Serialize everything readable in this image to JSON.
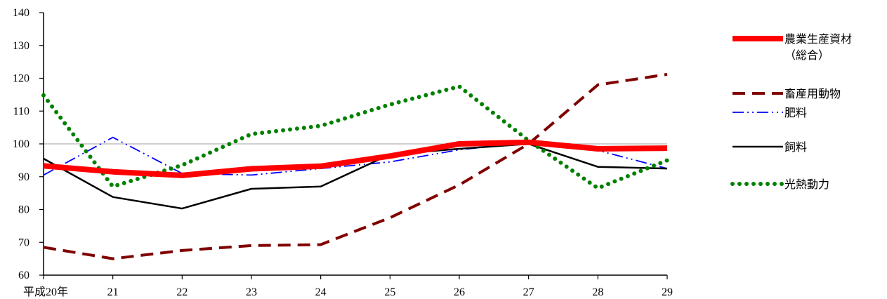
{
  "chart_data": {
    "type": "line",
    "title": "",
    "xlabel": "",
    "ylabel": "",
    "categories": [
      "平成20年",
      "21",
      "22",
      "23",
      "24",
      "25",
      "26",
      "27",
      "28",
      "29"
    ],
    "ylim": [
      60,
      140
    ],
    "yticks": [
      60,
      70,
      80,
      90,
      100,
      110,
      120,
      130,
      140
    ],
    "reference_line": 100,
    "legend_position": "right",
    "series": [
      {
        "name": "農業生産資材\n（総合）",
        "style": "thick-solid",
        "color": "#ff0000",
        "values": [
          93.3,
          91.5,
          90.4,
          92.4,
          93.2,
          96.3,
          100.0,
          100.5,
          98.5,
          98.7
        ]
      },
      {
        "name": "畜産用動物",
        "style": "dashed",
        "color": "#7f0000",
        "values": [
          68.5,
          65.0,
          67.5,
          69.0,
          69.3,
          77.5,
          87.5,
          100.0,
          118.0,
          121.2
        ]
      },
      {
        "name": "肥料",
        "style": "dash-dot-dot",
        "color": "#0000ff",
        "values": [
          90.5,
          102.0,
          91.0,
          90.5,
          92.5,
          94.5,
          98.2,
          100.5,
          98.0,
          92.5
        ]
      },
      {
        "name": "飼料",
        "style": "solid",
        "color": "#000000",
        "values": [
          95.5,
          83.8,
          80.3,
          86.3,
          87.0,
          96.8,
          98.5,
          100.0,
          93.0,
          92.5
        ]
      },
      {
        "name": "光熱動力",
        "style": "dotted",
        "color": "#008000",
        "values": [
          114.8,
          87.0,
          93.5,
          103.0,
          105.5,
          112.0,
          117.5,
          101.0,
          86.5,
          95.0
        ]
      }
    ]
  }
}
